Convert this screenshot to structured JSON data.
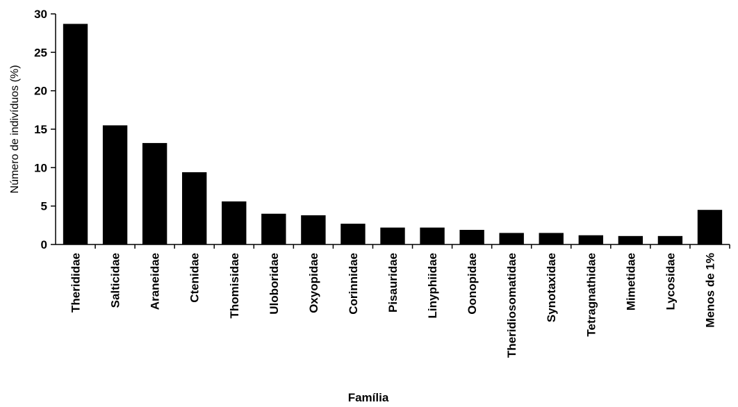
{
  "chart_data": {
    "type": "bar",
    "xlabel": "Família",
    "ylabel": "Número de indivíduos (%)",
    "ylim": [
      0,
      30
    ],
    "yticks": [
      0,
      5,
      10,
      15,
      20,
      25,
      30
    ],
    "grid": false,
    "legend": "none",
    "bar_color": "#000000",
    "categories": [
      "Therididae",
      "Salticidae",
      "Araneidae",
      "Ctenidae",
      "Thomisidae",
      "Uloboridae",
      "Oxyopidae",
      "Corinnidae",
      "Pisauridae",
      "Linyphiidae",
      "Oonopidae",
      "Theridiosomatidae",
      "Synotaxidae",
      "Tetragnathidae",
      "Mimetidae",
      "Lycosidae",
      "Menos de 1%"
    ],
    "values": [
      28.7,
      15.5,
      13.2,
      9.4,
      5.6,
      4.0,
      3.8,
      2.7,
      2.2,
      2.2,
      1.9,
      1.5,
      1.5,
      1.2,
      1.1,
      1.1,
      4.5
    ]
  }
}
